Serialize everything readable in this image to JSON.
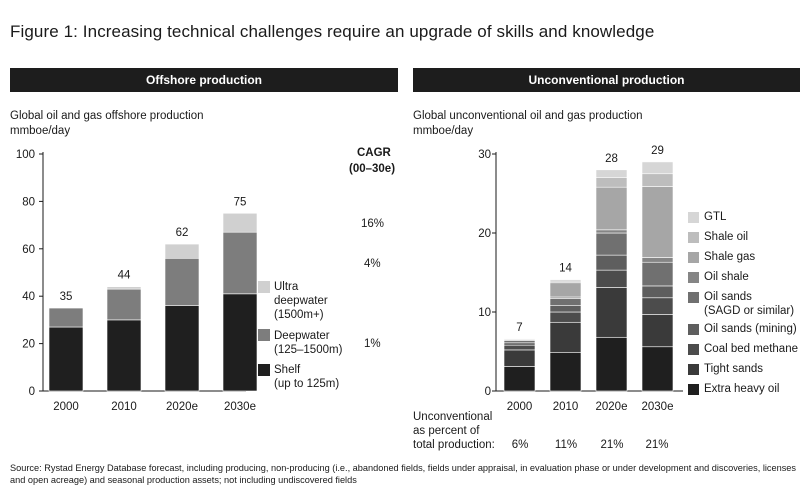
{
  "figure_title": "Figure 1: Increasing technical challenges require an upgrade of skills and knowledge",
  "colors": {
    "banner": "#1d1d1d",
    "shelf": "#1f1f1f",
    "deepwater": "#7d7d7d",
    "ultra": "#d0d0d0",
    "extra_heavy_oil": "#1f1f1f",
    "tight_sands": "#3a3a3a",
    "coal_bed_methane": "#4c4c4c",
    "oil_sands_mining": "#5e5e5e",
    "oil_sands_sagd": "#707070",
    "oil_shale": "#858585",
    "shale_gas": "#a6a6a6",
    "shale_oil": "#bdbdbd",
    "gtl": "#d6d6d6"
  },
  "left": {
    "banner": "Offshore production",
    "subtitle_1": "Global oil and gas offshore production",
    "subtitle_2": "mmboe/day",
    "cagr_title_1": "CAGR",
    "cagr_title_2": "(00–30e)",
    "cagr_values": [
      "16%",
      "4%",
      "1%"
    ],
    "legend": [
      {
        "line1": "Ultra",
        "line2": "deepwater",
        "line3": "(1500m+)",
        "color": "#d0d0d0"
      },
      {
        "line1": "Deepwater",
        "line2": "(125–1500m)",
        "color": "#7d7d7d"
      },
      {
        "line1": "Shelf",
        "line2": "(up to 125m)",
        "color": "#1f1f1f"
      }
    ]
  },
  "right": {
    "banner": "Unconventional production",
    "subtitle_1": "Global unconventional oil and gas production",
    "subtitle_2": "mmboe/day",
    "pct_label_1": "Unconventional",
    "pct_label_2": "as percent of",
    "pct_label_3": "total production:",
    "pct_values": [
      "6%",
      "11%",
      "21%",
      "21%"
    ],
    "legend": [
      {
        "label": "GTL",
        "color": "#d6d6d6"
      },
      {
        "label": "Shale oil",
        "color": "#bdbdbd"
      },
      {
        "label": "Shale gas",
        "color": "#a6a6a6"
      },
      {
        "label": "Oil shale",
        "color": "#858585"
      },
      {
        "label": "Oil sands",
        "label2": "(SAGD or similar)",
        "color": "#707070"
      },
      {
        "label": "Oil sands (mining)",
        "color": "#5e5e5e"
      },
      {
        "label": "Coal bed methane",
        "color": "#4c4c4c"
      },
      {
        "label": "Tight sands",
        "color": "#3a3a3a"
      },
      {
        "label": "Extra heavy oil",
        "color": "#1f1f1f"
      }
    ]
  },
  "source": "Source: Rystad Energy Database forecast, including producing, non-producing (i.e., abandoned fields, fields under appraisal, in evaluation phase or under development and discoveries, licenses and open acreage) and seasonal production assets; not including undiscovered fields",
  "chart_data": [
    {
      "type": "bar",
      "stacked": true,
      "title": "Offshore production",
      "ylabel": "mmboe/day",
      "categories": [
        "2000",
        "2010",
        "2020e",
        "2030e"
      ],
      "ylim": [
        0,
        100
      ],
      "yticks": [
        0,
        20,
        40,
        60,
        80,
        100
      ],
      "series": [
        {
          "name": "Shelf (up to 125m)",
          "values": [
            27,
            30,
            36,
            41
          ]
        },
        {
          "name": "Deepwater (125–1500m)",
          "values": [
            8,
            13,
            20,
            26
          ]
        },
        {
          "name": "Ultra deepwater (1500m+)",
          "values": [
            0,
            1,
            6,
            8
          ]
        }
      ],
      "totals": [
        35,
        44,
        62,
        75
      ]
    },
    {
      "type": "bar",
      "stacked": true,
      "title": "Unconventional production",
      "ylabel": "mmboe/day",
      "categories": [
        "2000",
        "2010",
        "2020e",
        "2030e"
      ],
      "ylim": [
        0,
        30
      ],
      "yticks": [
        0,
        10,
        20,
        30
      ],
      "series": [
        {
          "name": "Extra heavy oil",
          "values": [
            3.1,
            4.9,
            6.8,
            5.6
          ]
        },
        {
          "name": "Tight sands",
          "values": [
            2.1,
            3.8,
            6.3,
            4.1
          ]
        },
        {
          "name": "Coal bed methane",
          "values": [
            0.6,
            1.3,
            2.2,
            2.1
          ]
        },
        {
          "name": "Oil sands (mining)",
          "values": [
            0.3,
            0.8,
            1.9,
            1.5
          ]
        },
        {
          "name": "Oil sands (SAGD or similar)",
          "values": [
            0.3,
            0.9,
            2.8,
            3.0
          ]
        },
        {
          "name": "Oil shale",
          "values": [
            0.0,
            0.2,
            0.4,
            0.6
          ]
        },
        {
          "name": "Shale gas",
          "values": [
            0.1,
            1.8,
            5.4,
            9.0
          ]
        },
        {
          "name": "Shale oil",
          "values": [
            0.1,
            0.2,
            1.2,
            1.6
          ]
        },
        {
          "name": "GTL",
          "values": [
            0.0,
            0.2,
            1.0,
            1.5
          ]
        }
      ],
      "totals": [
        7,
        14,
        28,
        29
      ]
    }
  ]
}
